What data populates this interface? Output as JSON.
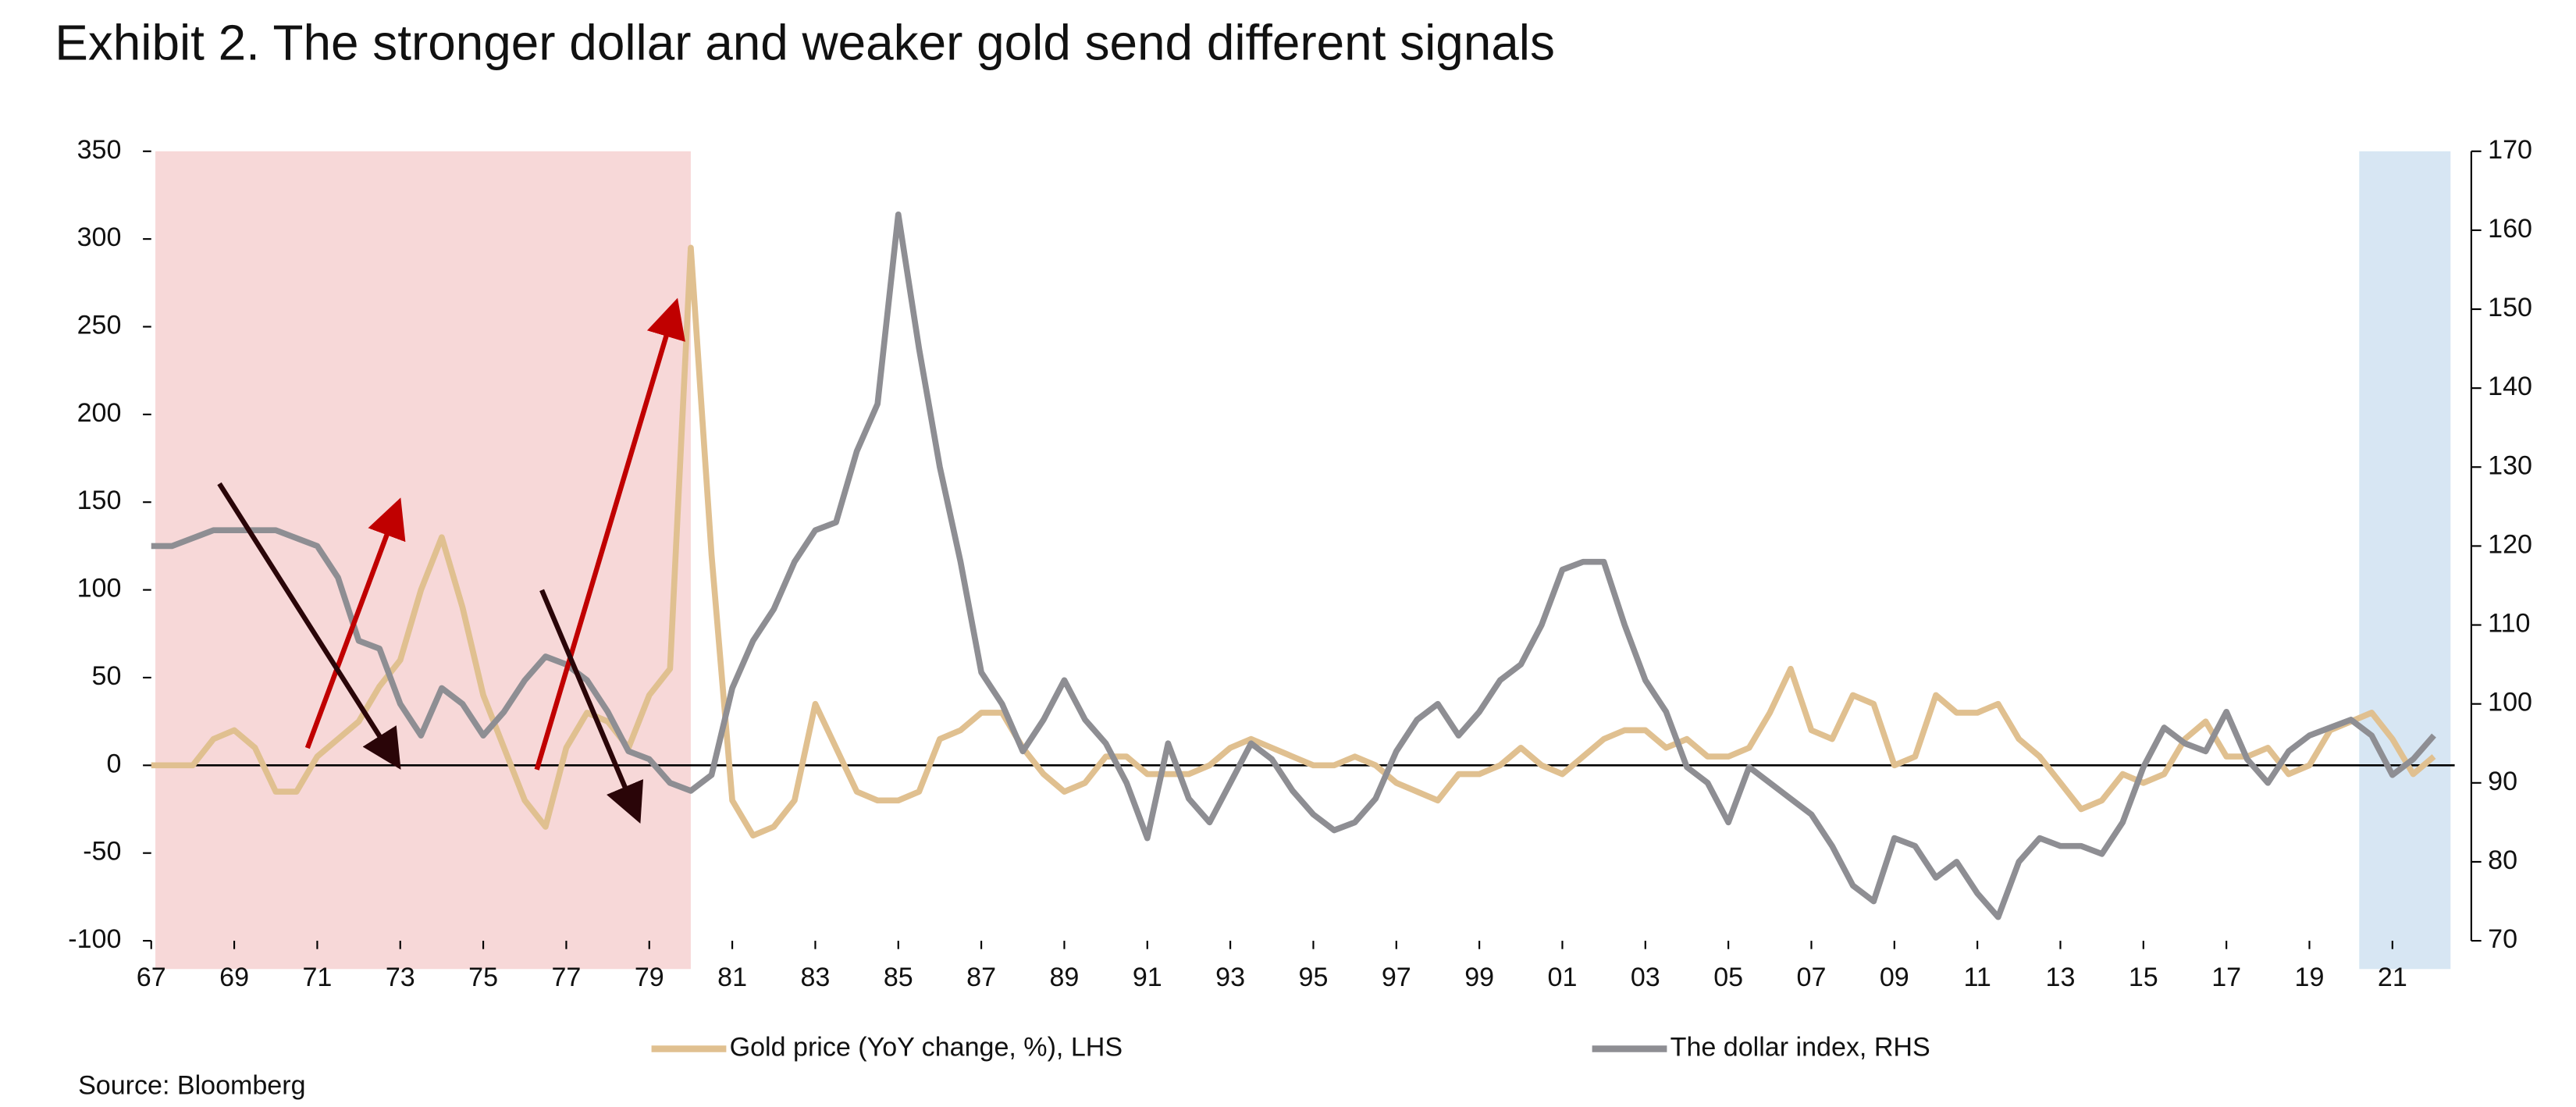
{
  "chart_data": {
    "type": "line",
    "title": "Exhibit 2. The stronger dollar and weaker gold send different signals",
    "source": "Source: Bloomberg",
    "x": [
      1967,
      1967.5,
      1968,
      1968.5,
      1969,
      1969.5,
      1970,
      1970.5,
      1971,
      1971.5,
      1972,
      1972.5,
      1973,
      1973.5,
      1974,
      1974.5,
      1975,
      1975.5,
      1976,
      1976.5,
      1977,
      1977.5,
      1978,
      1978.5,
      1979,
      1979.5,
      1980,
      1980.5,
      1981,
      1981.5,
      1982,
      1982.5,
      1983,
      1983.5,
      1984,
      1984.5,
      1985,
      1985.5,
      1986,
      1986.5,
      1987,
      1987.5,
      1988,
      1988.5,
      1989,
      1989.5,
      1990,
      1990.5,
      1991,
      1991.5,
      1992,
      1992.5,
      1993,
      1993.5,
      1994,
      1994.5,
      1995,
      1995.5,
      1996,
      1996.5,
      1997,
      1997.5,
      1998,
      1998.5,
      1999,
      1999.5,
      2000,
      2000.5,
      2001,
      2001.5,
      2002,
      2002.5,
      2003,
      2003.5,
      2004,
      2004.5,
      2005,
      2005.5,
      2006,
      2006.5,
      2007,
      2007.5,
      2008,
      2008.5,
      2009,
      2009.5,
      2010,
      2010.5,
      2011,
      2011.5,
      2012,
      2012.5,
      2013,
      2013.5,
      2014,
      2014.5,
      2015,
      2015.5,
      2016,
      2016.5,
      2017,
      2017.5,
      2018,
      2018.5,
      2019,
      2019.5,
      2020,
      2020.5,
      2021,
      2021.5,
      2022
    ],
    "series": [
      {
        "name": "Gold price (YoY change, %), LHS",
        "color": "#e0c090",
        "values": [
          0,
          0,
          0,
          15,
          20,
          10,
          -15,
          -15,
          5,
          15,
          25,
          45,
          60,
          100,
          130,
          90,
          40,
          10,
          -20,
          -35,
          10,
          30,
          25,
          10,
          40,
          55,
          295,
          120,
          -20,
          -40,
          -35,
          -20,
          35,
          10,
          -15,
          -20,
          -20,
          -15,
          15,
          20,
          30,
          30,
          10,
          -5,
          -15,
          -10,
          5,
          5,
          -5,
          -5,
          -5,
          0,
          10,
          15,
          10,
          5,
          0,
          0,
          5,
          0,
          -10,
          -15,
          -20,
          -5,
          -5,
          0,
          10,
          0,
          -5,
          5,
          15,
          20,
          20,
          10,
          15,
          5,
          5,
          10,
          30,
          55,
          20,
          15,
          40,
          35,
          0,
          5,
          40,
          30,
          30,
          35,
          15,
          5,
          -10,
          -25,
          -20,
          -5,
          -10,
          -5,
          15,
          25,
          5,
          5,
          10,
          -5,
          0,
          20,
          25,
          30,
          15,
          -5,
          5
        ]
      },
      {
        "name": "The dollar index, RHS",
        "color": "#8e8e93",
        "axis": "y2",
        "values": [
          120,
          120,
          121,
          122,
          122,
          122,
          122,
          121,
          120,
          116,
          108,
          107,
          100,
          96,
          102,
          100,
          96,
          99,
          103,
          106,
          105,
          103,
          99,
          94,
          93,
          90,
          89,
          91,
          102,
          108,
          112,
          118,
          122,
          123,
          132,
          138,
          162,
          145,
          130,
          118,
          104,
          100,
          94,
          98,
          103,
          98,
          95,
          90,
          83,
          95,
          88,
          85,
          90,
          95,
          93,
          89,
          86,
          84,
          85,
          88,
          94,
          98,
          100,
          96,
          99,
          103,
          105,
          110,
          117,
          118,
          118,
          110,
          103,
          99,
          92,
          90,
          85,
          92,
          90,
          88,
          86,
          82,
          77,
          75,
          83,
          82,
          78,
          80,
          76,
          73,
          80,
          83,
          82,
          82,
          81,
          85,
          92,
          97,
          95,
          94,
          99,
          93,
          90,
          94,
          96,
          97,
          98,
          96,
          91,
          93,
          96
        ]
      }
    ],
    "xlim": [
      1967,
      2022.5
    ],
    "xticks": [
      {
        "value": 1967,
        "label": "67"
      },
      {
        "value": 1969,
        "label": "69"
      },
      {
        "value": 1971,
        "label": "71"
      },
      {
        "value": 1973,
        "label": "73"
      },
      {
        "value": 1975,
        "label": "75"
      },
      {
        "value": 1977,
        "label": "77"
      },
      {
        "value": 1979,
        "label": "79"
      },
      {
        "value": 1981,
        "label": "81"
      },
      {
        "value": 1983,
        "label": "83"
      },
      {
        "value": 1985,
        "label": "85"
      },
      {
        "value": 1987,
        "label": "87"
      },
      {
        "value": 1989,
        "label": "89"
      },
      {
        "value": 1991,
        "label": "91"
      },
      {
        "value": 1993,
        "label": "93"
      },
      {
        "value": 1995,
        "label": "95"
      },
      {
        "value": 1997,
        "label": "97"
      },
      {
        "value": 1999,
        "label": "99"
      },
      {
        "value": 2001,
        "label": "01"
      },
      {
        "value": 2003,
        "label": "03"
      },
      {
        "value": 2005,
        "label": "05"
      },
      {
        "value": 2007,
        "label": "07"
      },
      {
        "value": 2009,
        "label": "09"
      },
      {
        "value": 2011,
        "label": "11"
      },
      {
        "value": 2013,
        "label": "13"
      },
      {
        "value": 2015,
        "label": "15"
      },
      {
        "value": 2017,
        "label": "17"
      },
      {
        "value": 2019,
        "label": "19"
      },
      {
        "value": 2021,
        "label": "21"
      }
    ],
    "ylim": [
      -100,
      350
    ],
    "yticks": [
      -100,
      -50,
      0,
      50,
      100,
      150,
      200,
      250,
      300,
      350
    ],
    "y2lim": [
      70,
      170
    ],
    "y2ticks": [
      70,
      80,
      90,
      100,
      110,
      120,
      130,
      140,
      150,
      160,
      170
    ],
    "shaded": [
      {
        "xlim": [
          1967.1,
          1980
        ],
        "color": "#f7d8d8"
      },
      {
        "xlim": [
          2020.2,
          2022.4
        ],
        "color": "#d7e6f3"
      }
    ]
  }
}
